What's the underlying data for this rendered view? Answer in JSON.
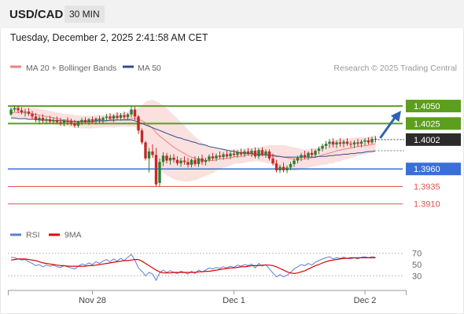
{
  "header": {
    "symbol": "USD/CAD",
    "timeframe": "30 MIN"
  },
  "datetime": "Tuesday, December 2, 2025 2:41:58 AM CET",
  "legend": {
    "ma20": {
      "label": "MA 20 + Bollinger Bands",
      "color": "#f08080"
    },
    "ma50": {
      "label": "MA 50",
      "color": "#2e4f8f"
    },
    "rsi": {
      "label": "RSI",
      "color": "#5b7fd6"
    },
    "rsi_ma": {
      "label": "9MA",
      "color": "#e00000"
    }
  },
  "credit": "Research © 2025 Trading Central",
  "colors": {
    "up": "#2e7d32",
    "down": "#c62828",
    "resistance": "#5c9e1e",
    "support": "#3a6fd8",
    "target_low": "#e05050",
    "arrow": "#2f62b5"
  },
  "chart_data": [
    {
      "type": "candlestick",
      "ylim": [
        1.3885,
        1.4095
      ],
      "x_ticks": [
        {
          "label": "Nov 28",
          "index": 23
        },
        {
          "label": "Dec 1",
          "index": 63
        },
        {
          "label": "Dec 2",
          "index": 100
        }
      ],
      "levels": [
        {
          "value": 1.405,
          "label": "1.4050",
          "kind": "resistance"
        },
        {
          "value": 1.4025,
          "label": "1.4025",
          "kind": "resistance"
        },
        {
          "value": 1.396,
          "label": "1.3960",
          "kind": "support"
        },
        {
          "value": 1.3935,
          "label": "1.3935",
          "kind": "target"
        },
        {
          "value": 1.391,
          "label": "1.3910",
          "kind": "target"
        }
      ],
      "last_price": {
        "value": 1.4002,
        "label": "1.4002"
      },
      "forecast_target": 1.405,
      "ohlc": [
        [
          1.4038,
          1.4048,
          1.4036,
          1.4045
        ],
        [
          1.4045,
          1.4051,
          1.4042,
          1.4047
        ],
        [
          1.4047,
          1.405,
          1.404,
          1.4044
        ],
        [
          1.4044,
          1.4048,
          1.4038,
          1.4041
        ],
        [
          1.4041,
          1.4046,
          1.4035,
          1.4042
        ],
        [
          1.4042,
          1.4047,
          1.4036,
          1.4039
        ],
        [
          1.4039,
          1.4043,
          1.4031,
          1.4035
        ],
        [
          1.4035,
          1.404,
          1.4027,
          1.403
        ],
        [
          1.403,
          1.4036,
          1.4024,
          1.4033
        ],
        [
          1.4033,
          1.4038,
          1.4026,
          1.4029
        ],
        [
          1.4029,
          1.4034,
          1.4024,
          1.4031
        ],
        [
          1.4031,
          1.4036,
          1.4025,
          1.4028
        ],
        [
          1.4028,
          1.4034,
          1.4024,
          1.403
        ],
        [
          1.403,
          1.4035,
          1.4025,
          1.4027
        ],
        [
          1.4027,
          1.4033,
          1.4022,
          1.4026
        ],
        [
          1.4026,
          1.4031,
          1.4021,
          1.4029
        ],
        [
          1.4029,
          1.4034,
          1.4023,
          1.4027
        ],
        [
          1.4027,
          1.4032,
          1.4022,
          1.4025
        ],
        [
          1.4025,
          1.403,
          1.4019,
          1.4022
        ],
        [
          1.4022,
          1.4029,
          1.4019,
          1.4027
        ],
        [
          1.4027,
          1.4033,
          1.4023,
          1.403
        ],
        [
          1.403,
          1.4034,
          1.4025,
          1.4028
        ],
        [
          1.4028,
          1.4033,
          1.4023,
          1.4031
        ],
        [
          1.4031,
          1.4035,
          1.4026,
          1.4029
        ],
        [
          1.4029,
          1.4034,
          1.4024,
          1.4032
        ],
        [
          1.4032,
          1.4036,
          1.4026,
          1.403
        ],
        [
          1.403,
          1.4035,
          1.4025,
          1.4033
        ],
        [
          1.4033,
          1.4039,
          1.4028,
          1.4035
        ],
        [
          1.4035,
          1.404,
          1.4029,
          1.4032
        ],
        [
          1.4032,
          1.4038,
          1.4027,
          1.4036
        ],
        [
          1.4036,
          1.4041,
          1.403,
          1.4033
        ],
        [
          1.4033,
          1.404,
          1.4029,
          1.4037
        ],
        [
          1.4037,
          1.4042,
          1.4031,
          1.4034
        ],
        [
          1.4034,
          1.404,
          1.403,
          1.4038
        ],
        [
          1.4038,
          1.405,
          1.4034,
          1.4045
        ],
        [
          1.4045,
          1.4049,
          1.403,
          1.4035
        ],
        [
          1.4035,
          1.4037,
          1.401,
          1.4015
        ],
        [
          1.4015,
          1.4018,
          1.3995,
          1.3998
        ],
        [
          1.3998,
          1.4,
          1.3972,
          1.3975
        ],
        [
          1.3975,
          1.399,
          1.3955,
          1.3985
        ],
        [
          1.3985,
          1.3995,
          1.3976,
          1.398
        ],
        [
          1.398,
          1.399,
          1.3935,
          1.3938
        ],
        [
          1.394,
          1.3975,
          1.3935,
          1.397
        ],
        [
          1.397,
          1.3984,
          1.3964,
          1.3979
        ],
        [
          1.3979,
          1.3983,
          1.3968,
          1.3972
        ],
        [
          1.3972,
          1.398,
          1.3966,
          1.3976
        ],
        [
          1.3976,
          1.3981,
          1.3969,
          1.3973
        ],
        [
          1.3973,
          1.3978,
          1.3965,
          1.3968
        ],
        [
          1.3968,
          1.3976,
          1.3963,
          1.3972
        ],
        [
          1.3972,
          1.3978,
          1.3966,
          1.397
        ],
        [
          1.397,
          1.3976,
          1.3962,
          1.3966
        ],
        [
          1.3966,
          1.3975,
          1.3962,
          1.3973
        ],
        [
          1.3973,
          1.3978,
          1.3964,
          1.3967
        ],
        [
          1.3967,
          1.3978,
          1.3963,
          1.3975
        ],
        [
          1.3975,
          1.398,
          1.3966,
          1.397
        ],
        [
          1.397,
          1.3976,
          1.3965,
          1.3973
        ],
        [
          1.3973,
          1.3981,
          1.397,
          1.3978
        ],
        [
          1.3978,
          1.3983,
          1.3972,
          1.3975
        ],
        [
          1.3975,
          1.3982,
          1.3971,
          1.3979
        ],
        [
          1.3979,
          1.3985,
          1.3974,
          1.3977
        ],
        [
          1.3977,
          1.3984,
          1.3973,
          1.3981
        ],
        [
          1.3981,
          1.3986,
          1.3975,
          1.3978
        ],
        [
          1.3978,
          1.3985,
          1.3974,
          1.3982
        ],
        [
          1.3982,
          1.3988,
          1.3977,
          1.398
        ],
        [
          1.398,
          1.3987,
          1.3976,
          1.3984
        ],
        [
          1.3984,
          1.3989,
          1.3978,
          1.3981
        ],
        [
          1.3981,
          1.3988,
          1.3977,
          1.3985
        ],
        [
          1.3985,
          1.399,
          1.3979,
          1.3982
        ],
        [
          1.3982,
          1.3989,
          1.3977,
          1.3986
        ],
        [
          1.3986,
          1.3991,
          1.3975,
          1.3978
        ],
        [
          1.3978,
          1.399,
          1.3974,
          1.3987
        ],
        [
          1.3987,
          1.3991,
          1.3978,
          1.3981
        ],
        [
          1.3981,
          1.3988,
          1.3976,
          1.3985
        ],
        [
          1.3985,
          1.3988,
          1.3972,
          1.3975
        ],
        [
          1.3975,
          1.3982,
          1.3965,
          1.3968
        ],
        [
          1.3968,
          1.3973,
          1.3955,
          1.3958
        ],
        [
          1.3958,
          1.3966,
          1.3954,
          1.3963
        ],
        [
          1.3963,
          1.3969,
          1.3955,
          1.3958
        ],
        [
          1.3958,
          1.3965,
          1.3954,
          1.3962
        ],
        [
          1.3962,
          1.397,
          1.3958,
          1.3967
        ],
        [
          1.3967,
          1.3975,
          1.3963,
          1.3972
        ],
        [
          1.3972,
          1.3979,
          1.3968,
          1.3976
        ],
        [
          1.3976,
          1.3983,
          1.3971,
          1.398
        ],
        [
          1.398,
          1.3986,
          1.3974,
          1.3977
        ],
        [
          1.3977,
          1.3985,
          1.3973,
          1.3983
        ],
        [
          1.3983,
          1.3989,
          1.3977,
          1.398
        ],
        [
          1.398,
          1.3988,
          1.3976,
          1.3986
        ],
        [
          1.3986,
          1.3992,
          1.3981,
          1.3989
        ],
        [
          1.3989,
          1.3996,
          1.3985,
          1.3993
        ],
        [
          1.3993,
          1.4,
          1.3988,
          1.3996
        ],
        [
          1.3996,
          1.4003,
          1.399,
          1.3999
        ],
        [
          1.3999,
          1.4004,
          1.3991,
          1.3995
        ],
        [
          1.3995,
          1.4001,
          1.399,
          1.3998
        ],
        [
          1.3998,
          1.4004,
          1.3992,
          1.3996
        ],
        [
          1.3996,
          1.4002,
          1.3991,
          1.3999
        ],
        [
          1.3999,
          1.4004,
          1.3993,
          1.3996
        ],
        [
          1.3996,
          1.4,
          1.3991,
          1.3995
        ],
        [
          1.3995,
          1.4001,
          1.399,
          1.3998
        ],
        [
          1.3998,
          1.4003,
          1.3992,
          1.3996
        ],
        [
          1.3996,
          1.4002,
          1.3991,
          1.3999
        ],
        [
          1.3999,
          1.4004,
          1.3994,
          1.4001
        ],
        [
          1.4001,
          1.4005,
          1.3995,
          1.3998
        ],
        [
          1.3998,
          1.4006,
          1.3996,
          1.4003
        ],
        [
          1.4003,
          1.4007,
          1.3998,
          1.4002
        ]
      ],
      "ma20": [
        1.404,
        1.4041,
        1.4041,
        1.4041,
        1.404,
        1.404,
        1.4039,
        1.4038,
        1.4037,
        1.4036,
        1.4035,
        1.4034,
        1.4033,
        1.4032,
        1.4031,
        1.403,
        1.403,
        1.4029,
        1.4028,
        1.4028,
        1.4027,
        1.4027,
        1.4027,
        1.4027,
        1.4028,
        1.4028,
        1.4028,
        1.4029,
        1.4029,
        1.4029,
        1.403,
        1.403,
        1.4031,
        1.4031,
        1.4032,
        1.4032,
        1.4031,
        1.4029,
        1.4026,
        1.4022,
        1.4018,
        1.4012,
        1.4007,
        1.4003,
        1.3999,
        1.3995,
        1.3991,
        1.3988,
        1.3985,
        1.3982,
        1.3979,
        1.3977,
        1.3975,
        1.3974,
        1.3973,
        1.3972,
        1.3972,
        1.3972,
        1.3973,
        1.3974,
        1.3975,
        1.3975,
        1.3976,
        1.3977,
        1.3978,
        1.3978,
        1.3979,
        1.398,
        1.398,
        1.3981,
        1.3981,
        1.3981,
        1.3981,
        1.3981,
        1.398,
        1.3979,
        1.3978,
        1.3977,
        1.3976,
        1.3975,
        1.3974,
        1.3974,
        1.3974,
        1.3974,
        1.3975,
        1.3976,
        1.3977,
        1.3978,
        1.398,
        1.3981,
        1.3983,
        1.3984,
        1.3986,
        1.3987,
        1.3988,
        1.3989,
        1.399,
        1.3991,
        1.3992,
        1.3993,
        1.3993,
        1.3994,
        1.3995,
        1.3996
      ],
      "ma50": [
        1.4033,
        1.4033,
        1.4032,
        1.4032,
        1.4032,
        1.4031,
        1.4031,
        1.4031,
        1.403,
        1.403,
        1.403,
        1.403,
        1.4029,
        1.4029,
        1.4029,
        1.4029,
        1.4028,
        1.4028,
        1.4028,
        1.4028,
        1.4028,
        1.4028,
        1.4028,
        1.4028,
        1.4029,
        1.4029,
        1.4029,
        1.4029,
        1.403,
        1.403,
        1.403,
        1.403,
        1.403,
        1.403,
        1.403,
        1.4029,
        1.4027,
        1.4025,
        1.4023,
        1.4021,
        1.4019,
        1.4017,
        1.4015,
        1.4013,
        1.4011,
        1.4009,
        1.4007,
        1.4005,
        1.4004,
        1.4002,
        1.4001,
        1.3999,
        1.3998,
        1.3996,
        1.3995,
        1.3994,
        1.3992,
        1.3991,
        1.399,
        1.3989,
        1.3988,
        1.3987,
        1.3986,
        1.3985,
        1.3984,
        1.3983,
        1.3983,
        1.3982,
        1.3982,
        1.3981,
        1.3981,
        1.398,
        1.398,
        1.3979,
        1.3979,
        1.3978,
        1.3978,
        1.3977,
        1.3977,
        1.3977,
        1.3977,
        1.3977,
        1.3977,
        1.3977,
        1.3977,
        1.3977,
        1.3977,
        1.3978,
        1.3978,
        1.3978,
        1.3979,
        1.3979,
        1.398,
        1.398,
        1.3981,
        1.3981,
        1.3982,
        1.3982,
        1.3983,
        1.3983,
        1.3984,
        1.3985,
        1.3985,
        1.3986
      ],
      "bb_width": [
        0.0008,
        0.0008,
        0.0008,
        0.0008,
        0.0008,
        0.0008,
        0.0008,
        0.0009,
        0.0009,
        0.0009,
        0.0009,
        0.0009,
        0.0009,
        0.0009,
        0.0009,
        0.0009,
        0.0009,
        0.0009,
        0.0009,
        0.0009,
        0.0009,
        0.0009,
        0.0009,
        0.0009,
        0.0009,
        0.0009,
        0.0009,
        0.0009,
        0.0009,
        0.001,
        0.001,
        0.001,
        0.001,
        0.0011,
        0.0012,
        0.0012,
        0.0016,
        0.0022,
        0.003,
        0.0036,
        0.0041,
        0.0045,
        0.0047,
        0.0048,
        0.0048,
        0.0047,
        0.0046,
        0.0044,
        0.0042,
        0.004,
        0.0037,
        0.0034,
        0.0031,
        0.0028,
        0.0025,
        0.0022,
        0.002,
        0.0018,
        0.0016,
        0.0014,
        0.0013,
        0.0012,
        0.0011,
        0.001,
        0.001,
        0.001,
        0.001,
        0.001,
        0.001,
        0.001,
        0.001,
        0.0011,
        0.0012,
        0.0013,
        0.0014,
        0.0015,
        0.0016,
        0.0017,
        0.0017,
        0.0017,
        0.0017,
        0.0016,
        0.0015,
        0.0014,
        0.0013,
        0.0013,
        0.0013,
        0.0013,
        0.0014,
        0.0015,
        0.0015,
        0.0016,
        0.0016,
        0.0016,
        0.0015,
        0.0015,
        0.0014,
        0.0014,
        0.0013,
        0.0013,
        0.0012,
        0.0012,
        0.0012,
        0.0012
      ]
    },
    {
      "type": "line",
      "ylim": [
        15,
        85
      ],
      "y_ticks": [
        70,
        50,
        30
      ],
      "guide_levels": [
        70,
        30
      ],
      "series": [
        {
          "name": "RSI",
          "values": [
            63,
            62,
            60,
            58,
            59,
            55,
            52,
            48,
            50,
            46,
            49,
            47,
            49,
            46,
            45,
            48,
            46,
            44,
            42,
            47,
            51,
            49,
            53,
            50,
            55,
            52,
            56,
            59,
            55,
            60,
            56,
            61,
            57,
            63,
            68,
            58,
            44,
            38,
            30,
            36,
            33,
            22,
            35,
            40,
            36,
            39,
            36,
            34,
            38,
            36,
            33,
            38,
            34,
            40,
            37,
            40,
            44,
            42,
            45,
            43,
            46,
            44,
            47,
            45,
            49,
            47,
            50,
            48,
            51,
            44,
            52,
            47,
            50,
            42,
            35,
            28,
            32,
            28,
            31,
            36,
            42,
            46,
            50,
            48,
            52,
            49,
            54,
            57,
            60,
            62,
            64,
            60,
            62,
            61,
            63,
            61,
            60,
            62,
            60,
            63,
            64,
            62,
            64,
            63
          ]
        },
        {
          "name": "9MA",
          "values": [
            58,
            59,
            60,
            60,
            60,
            59,
            58,
            57,
            55,
            53,
            52,
            51,
            50,
            49,
            48,
            48,
            47,
            47,
            47,
            47,
            47,
            47,
            48,
            48,
            49,
            50,
            51,
            52,
            53,
            54,
            55,
            56,
            57,
            57,
            58,
            59,
            59,
            56,
            52,
            48,
            44,
            40,
            37,
            35,
            35,
            35,
            36,
            36,
            36,
            36,
            36,
            36,
            36,
            37,
            37,
            38,
            38,
            39,
            40,
            41,
            42,
            43,
            44,
            44,
            45,
            46,
            46,
            47,
            48,
            48,
            48,
            49,
            49,
            49,
            48,
            46,
            43,
            40,
            37,
            35,
            34,
            35,
            37,
            39,
            42,
            45,
            48,
            50,
            53,
            55,
            57,
            58,
            59,
            60,
            61,
            61,
            62,
            62,
            62,
            62,
            62,
            62,
            62,
            62
          ]
        }
      ]
    }
  ]
}
